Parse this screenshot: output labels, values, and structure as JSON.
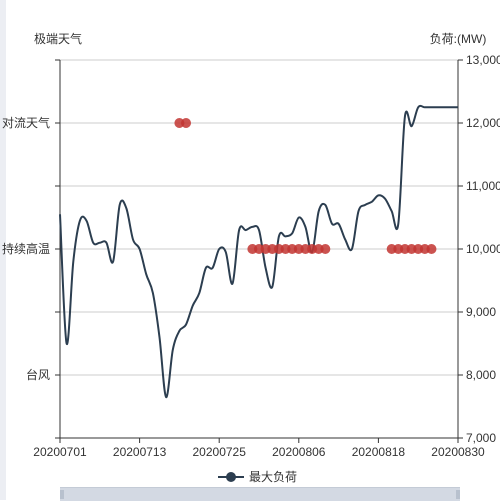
{
  "chart_data": {
    "type": "line",
    "left_axis": {
      "name": "极端天气",
      "categories": [
        "",
        "台风",
        "",
        "持续高温",
        "",
        "对流天气",
        ""
      ]
    },
    "right_axis": {
      "name": "负荷:(MW)",
      "min": 7000,
      "max": 13000,
      "interval": 1000,
      "tick_labels": [
        "7,000",
        "8,000",
        "9,000",
        "10,000",
        "11,000",
        "12,000",
        "13,000"
      ]
    },
    "x_axis": {
      "min_day": 0,
      "max_day": 60,
      "tick_labels": [
        "20200701",
        "20200713",
        "20200725",
        "20200806",
        "20200818",
        "20200830"
      ]
    },
    "grid": true,
    "legend": {
      "position": "bottom",
      "label": "最大负荷"
    },
    "colors": {
      "line": "#2c3e50",
      "marker": "#c23531",
      "grid": "#cccccc",
      "axis": "#333333"
    },
    "series": [
      {
        "name": "最大负荷",
        "type": "line",
        "x": [
          "20200701",
          "20200702",
          "20200703",
          "20200704",
          "20200705",
          "20200706",
          "20200707",
          "20200708",
          "20200709",
          "20200710",
          "20200711",
          "20200712",
          "20200713",
          "20200714",
          "20200715",
          "20200716",
          "20200717",
          "20200718",
          "20200719",
          "20200720",
          "20200721",
          "20200722",
          "20200723",
          "20200724",
          "20200725",
          "20200726",
          "20200727",
          "20200728",
          "20200729",
          "20200730",
          "20200731",
          "20200801",
          "20200802",
          "20200803",
          "20200804",
          "20200805",
          "20200806",
          "20200807",
          "20200808",
          "20200809",
          "20200810",
          "20200811",
          "20200812",
          "20200813",
          "20200814",
          "20200815",
          "20200816",
          "20200817",
          "20200818",
          "20200819",
          "20200820",
          "20200821",
          "20200822",
          "20200823",
          "20200824",
          "20200825",
          "20200826",
          "20200827",
          "20200828",
          "20200829",
          "20200830"
        ],
        "values": [
          10550,
          8500,
          9800,
          10450,
          10450,
          10100,
          10100,
          10100,
          9800,
          10700,
          10650,
          10150,
          10000,
          9600,
          9300,
          8600,
          7650,
          8400,
          8700,
          8800,
          9100,
          9300,
          9700,
          9700,
          10000,
          9950,
          9450,
          10300,
          10300,
          10350,
          10300,
          9700,
          9400,
          10200,
          10200,
          10250,
          10500,
          10350,
          9950,
          10600,
          10700,
          10400,
          10400,
          10150,
          10000,
          10600,
          10700,
          10750,
          10850,
          10800,
          10600,
          10400,
          12100,
          11950,
          12250,
          12250,
          12250,
          12250,
          12250,
          12250,
          12250
        ]
      },
      {
        "name": "持续高温",
        "type": "scatter",
        "category": "持续高温",
        "x": [
          "20200730",
          "20200731",
          "20200801",
          "20200802",
          "20200803",
          "20200804",
          "20200805",
          "20200806",
          "20200807",
          "20200808",
          "20200809",
          "20200810",
          "20200820",
          "20200821",
          "20200822",
          "20200823",
          "20200824",
          "20200825",
          "20200826"
        ]
      },
      {
        "name": "对流天气",
        "type": "scatter",
        "category": "对流天气",
        "x": [
          "20200719",
          "20200720"
        ]
      }
    ]
  }
}
